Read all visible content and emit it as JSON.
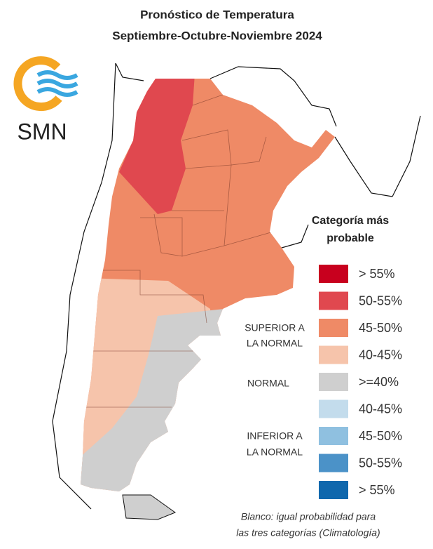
{
  "title": {
    "line1": "Pronóstico de Temperatura",
    "line2": "Septiembre-Octubre-Noviembre 2024"
  },
  "logo": {
    "text": "SMN"
  },
  "legend": {
    "title": {
      "line1": "Categoría más",
      "line2": "probable"
    },
    "items": [
      {
        "label": "> 55%",
        "color": "#c8001e"
      },
      {
        "label": "50-55%",
        "color": "#e0484f"
      },
      {
        "label": "45-50%",
        "color": "#ef8a66"
      },
      {
        "label": "40-45%",
        "color": "#f6c4ab"
      },
      {
        "label": ">=40%",
        "color": "#cfcfcf"
      },
      {
        "label": "40-45%",
        "color": "#c3dcec"
      },
      {
        "label": "45-50%",
        "color": "#8fc0e0"
      },
      {
        "label": "50-55%",
        "color": "#4b92c8"
      },
      {
        "label": "> 55%",
        "color": "#0f67ad"
      }
    ],
    "groups": [
      {
        "lines": [
          "SUPERIOR A",
          "LA NORMAL"
        ]
      },
      {
        "lines": [
          "NORMAL"
        ]
      },
      {
        "lines": [
          "INFERIOR A",
          "LA NORMAL"
        ]
      }
    ]
  },
  "footnote": {
    "line1": "Blanco: igual probabilidad para",
    "line2": "las tres categorías (Climatología)"
  }
}
